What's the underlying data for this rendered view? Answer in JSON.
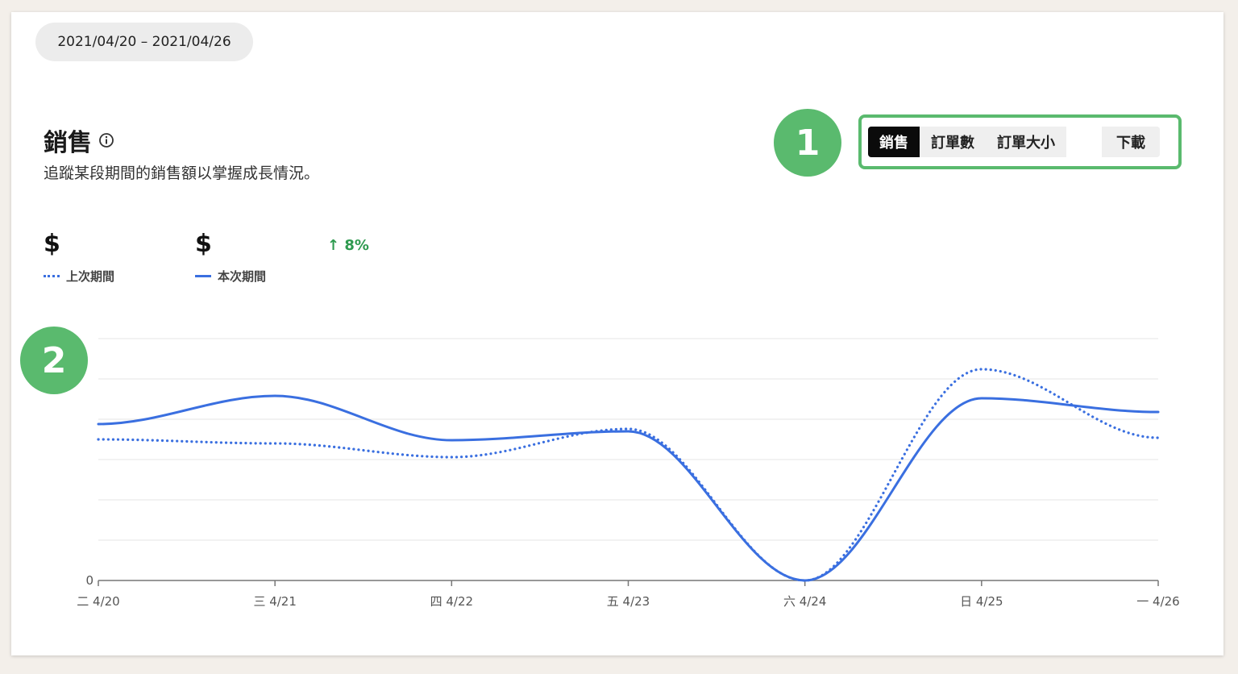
{
  "date_range": "2021/04/20 – 2021/04/26",
  "header": {
    "title": "銷售",
    "subtitle": "追蹤某段期間的銷售額以掌握成長情況。"
  },
  "badges": [
    "1",
    "2"
  ],
  "tabs": [
    {
      "label": "銷售",
      "active": true
    },
    {
      "label": "訂單數",
      "active": false
    },
    {
      "label": "訂單大小",
      "active": false
    }
  ],
  "download_label": "下載",
  "kpis": {
    "previous_value": "$",
    "current_value": "$",
    "change": "↑ 8%"
  },
  "legend": {
    "previous": "上次期間",
    "current": "本次期間"
  },
  "colors": {
    "accent_green": "#5aba6e",
    "series_blue": "#3a6fe0",
    "positive_green": "#2e9a4f"
  },
  "chart_data": {
    "type": "line",
    "categories": [
      "二 4/20",
      "三 4/21",
      "四 4/22",
      "五 4/23",
      "六 4/24",
      "日 4/25",
      "一 4/26"
    ],
    "y_tick_labels": [
      "0"
    ],
    "ylim": [
      0,
      6
    ],
    "grid": true,
    "series": [
      {
        "name": "上次期間",
        "style": "dotted",
        "values": [
          3.5,
          3.4,
          3.06,
          3.76,
          0,
          5.24,
          3.54
        ]
      },
      {
        "name": "本次期間",
        "style": "solid",
        "values": [
          3.88,
          4.58,
          3.48,
          3.7,
          0,
          4.52,
          4.18
        ]
      }
    ]
  }
}
